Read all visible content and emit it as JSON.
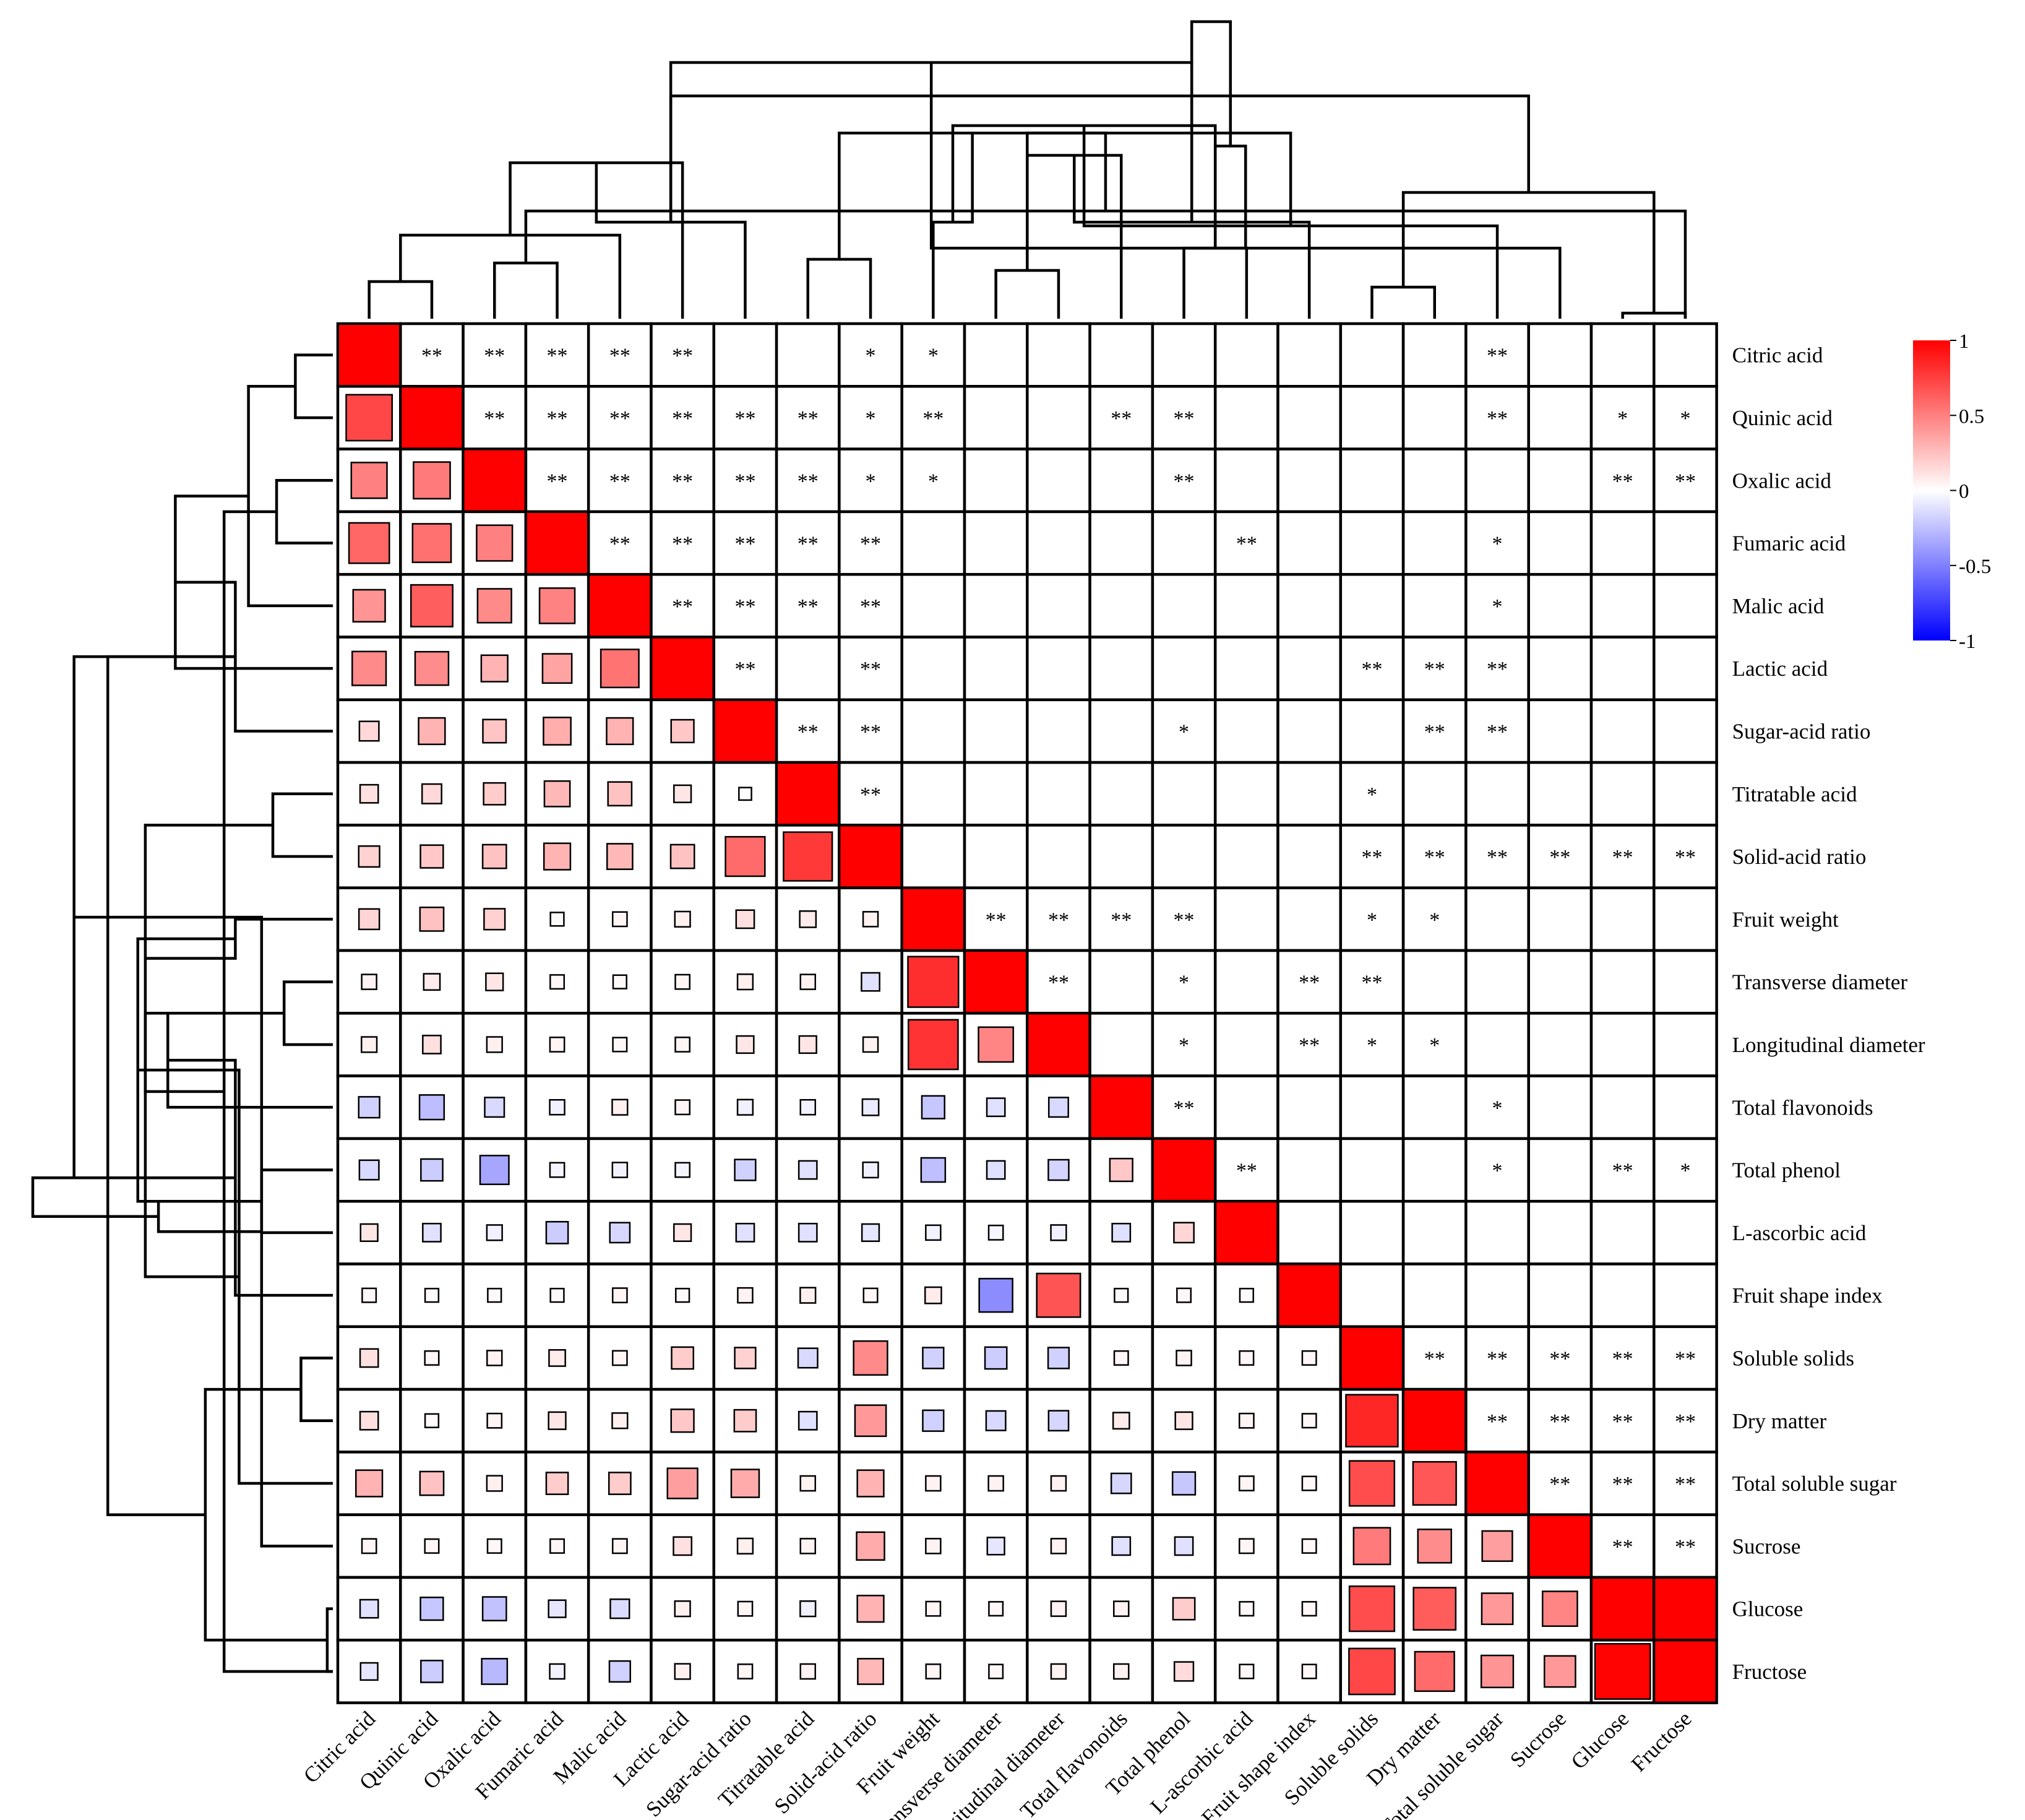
{
  "chart_data": {
    "type": "heatmap",
    "subtype": "clustered correlation matrix",
    "labels": [
      "Citric acid",
      "Quinic acid",
      "Oxalic acid",
      "Fumaric acid",
      "Malic acid",
      "Lactic acid",
      "Sugar-acid ratio",
      "Titratable acid",
      "Solid-acid ratio",
      "Fruit weight",
      "Transverse diameter",
      "Longitudinal diameter",
      "Total flavonoids",
      "Total phenol",
      "L-ascorbic acid",
      "Fruit shape index",
      "Soluble solids",
      "Dry matter",
      "Total soluble sugar",
      "Sucrose",
      "Glucose",
      "Fructose"
    ],
    "lower_triangle_r": [
      [],
      [
        0.72
      ],
      [
        0.5,
        0.52
      ],
      [
        0.6,
        0.56,
        0.5
      ],
      [
        0.42,
        0.63,
        0.46,
        0.49
      ],
      [
        0.46,
        0.45,
        0.3,
        0.36,
        0.55
      ],
      [
        0.15,
        0.3,
        0.23,
        0.32,
        0.3,
        0.22
      ],
      [
        0.12,
        0.15,
        0.2,
        0.28,
        0.24,
        0.1
      ],
      [
        0.18,
        0.22,
        0.24,
        0.3,
        0.28,
        0.24,
        0.58,
        0.78
      ],
      [
        0.17,
        0.24,
        0.18,
        0.02,
        0.04,
        0.06,
        0.12,
        0.08,
        0.05
      ],
      [
        0.05,
        0.08,
        0.1,
        0.03,
        0.02,
        0.04,
        0.06,
        0.05,
        -0.12,
        0.82
      ],
      [
        0.06,
        0.12,
        0.06,
        0.04,
        0.03,
        0.04,
        0.1,
        0.1,
        0.05,
        0.8,
        0.48
      ],
      [
        -0.18,
        -0.26,
        -0.15,
        -0.05,
        0.06,
        0.04,
        -0.06,
        -0.05,
        -0.08,
        -0.22,
        -0.12,
        -0.15
      ],
      [
        -0.15,
        -0.2,
        -0.35,
        -0.04,
        -0.05,
        -0.04,
        -0.18,
        -0.12,
        -0.06,
        -0.25,
        -0.12,
        -0.17,
        0.22
      ],
      [
        0.1,
        -0.12,
        -0.06,
        -0.2,
        -0.16,
        0.1,
        -0.12,
        -0.12,
        -0.1,
        -0.05,
        -0.04,
        -0.06,
        -0.12,
        0.16
      ],
      [
        0.03,
        0.02,
        0.02,
        0.02,
        0.04,
        0.02,
        0.05,
        0.06,
        0.03,
        0.08,
        -0.45,
        0.67,
        0.02,
        0.03,
        0.02
      ],
      [
        0.12,
        0.03,
        0.05,
        0.08,
        0.04,
        0.2,
        0.18,
        -0.15,
        0.46,
        -0.18,
        -0.2,
        -0.18,
        0.03,
        0.05,
        0.03,
        0.03
      ],
      [
        0.12,
        0.02,
        0.04,
        0.1,
        0.06,
        0.22,
        0.2,
        -0.12,
        0.4,
        -0.18,
        -0.15,
        -0.16,
        0.08,
        0.1,
        0.04,
        0.03,
        0.85
      ],
      [
        0.3,
        0.24,
        0.06,
        0.2,
        0.2,
        0.38,
        0.33,
        0.05,
        0.3,
        0.05,
        0.05,
        0.05,
        -0.16,
        -0.22,
        0.04,
        0.03,
        0.7,
        0.66
      ],
      [
        0.04,
        0.03,
        0.03,
        0.03,
        0.04,
        0.12,
        0.06,
        0.05,
        0.33,
        0.05,
        -0.1,
        0.05,
        -0.12,
        -0.12,
        0.04,
        0.03,
        0.52,
        0.45,
        0.38
      ],
      [
        -0.12,
        -0.22,
        -0.24,
        -0.1,
        -0.14,
        0.06,
        0.04,
        -0.06,
        0.3,
        0.04,
        0.03,
        0.05,
        0.05,
        0.2,
        0.03,
        0.03,
        0.7,
        0.64,
        0.4,
        0.48
      ],
      [
        -0.1,
        -0.2,
        -0.28,
        -0.05,
        -0.18,
        0.06,
        0.04,
        0.05,
        0.28,
        0.04,
        0.03,
        0.05,
        0.05,
        0.14,
        0.03,
        0.03,
        0.72,
        0.58,
        0.42,
        0.4,
        0.99
      ]
    ],
    "upper_triangle_significance": [
      [
        0,
        1,
        "**"
      ],
      [
        0,
        2,
        "**"
      ],
      [
        0,
        3,
        "**"
      ],
      [
        0,
        4,
        "**"
      ],
      [
        0,
        5,
        "**"
      ],
      [
        0,
        8,
        "*"
      ],
      [
        0,
        9,
        "*"
      ],
      [
        0,
        18,
        "**"
      ],
      [
        1,
        2,
        "**"
      ],
      [
        1,
        3,
        "**"
      ],
      [
        1,
        4,
        "**"
      ],
      [
        1,
        5,
        "**"
      ],
      [
        1,
        6,
        "**"
      ],
      [
        1,
        7,
        "**"
      ],
      [
        1,
        8,
        "*"
      ],
      [
        1,
        9,
        "**"
      ],
      [
        1,
        12,
        "**"
      ],
      [
        1,
        13,
        "**"
      ],
      [
        1,
        18,
        "**"
      ],
      [
        1,
        20,
        "*"
      ],
      [
        1,
        21,
        "*"
      ],
      [
        2,
        3,
        "**"
      ],
      [
        2,
        4,
        "**"
      ],
      [
        2,
        5,
        "**"
      ],
      [
        2,
        6,
        "**"
      ],
      [
        2,
        7,
        "**"
      ],
      [
        2,
        8,
        "*"
      ],
      [
        2,
        9,
        "*"
      ],
      [
        2,
        13,
        "**"
      ],
      [
        2,
        20,
        "**"
      ],
      [
        2,
        21,
        "**"
      ],
      [
        3,
        4,
        "**"
      ],
      [
        3,
        5,
        "**"
      ],
      [
        3,
        6,
        "**"
      ],
      [
        3,
        7,
        "**"
      ],
      [
        3,
        8,
        "**"
      ],
      [
        3,
        14,
        "**"
      ],
      [
        3,
        18,
        "*"
      ],
      [
        4,
        5,
        "**"
      ],
      [
        4,
        6,
        "**"
      ],
      [
        4,
        7,
        "**"
      ],
      [
        4,
        8,
        "**"
      ],
      [
        4,
        18,
        "*"
      ],
      [
        5,
        6,
        "**"
      ],
      [
        5,
        8,
        "**"
      ],
      [
        5,
        16,
        "**"
      ],
      [
        5,
        17,
        "**"
      ],
      [
        5,
        18,
        "**"
      ],
      [
        6,
        7,
        "**"
      ],
      [
        6,
        8,
        "**"
      ],
      [
        6,
        13,
        "*"
      ],
      [
        6,
        17,
        "**"
      ],
      [
        6,
        18,
        "**"
      ],
      [
        7,
        8,
        "**"
      ],
      [
        7,
        16,
        "*"
      ],
      [
        8,
        16,
        "**"
      ],
      [
        8,
        17,
        "**"
      ],
      [
        8,
        18,
        "**"
      ],
      [
        8,
        19,
        "**"
      ],
      [
        8,
        20,
        "**"
      ],
      [
        8,
        21,
        "**"
      ],
      [
        9,
        10,
        "**"
      ],
      [
        9,
        11,
        "**"
      ],
      [
        9,
        12,
        "**"
      ],
      [
        9,
        13,
        "**"
      ],
      [
        9,
        16,
        "*"
      ],
      [
        9,
        17,
        "*"
      ],
      [
        10,
        11,
        "**"
      ],
      [
        10,
        13,
        "*"
      ],
      [
        10,
        15,
        "**"
      ],
      [
        10,
        16,
        "**"
      ],
      [
        11,
        13,
        "*"
      ],
      [
        11,
        15,
        "**"
      ],
      [
        11,
        16,
        "*"
      ],
      [
        11,
        17,
        "*"
      ],
      [
        12,
        13,
        "**"
      ],
      [
        12,
        18,
        "*"
      ],
      [
        13,
        14,
        "**"
      ],
      [
        13,
        18,
        "*"
      ],
      [
        13,
        20,
        "**"
      ],
      [
        13,
        21,
        "*"
      ],
      [
        16,
        17,
        "**"
      ],
      [
        16,
        18,
        "**"
      ],
      [
        16,
        19,
        "**"
      ],
      [
        16,
        20,
        "**"
      ],
      [
        16,
        21,
        "**"
      ],
      [
        17,
        18,
        "**"
      ],
      [
        17,
        19,
        "**"
      ],
      [
        17,
        20,
        "**"
      ],
      [
        17,
        21,
        "**"
      ],
      [
        18,
        19,
        "**"
      ],
      [
        18,
        20,
        "**"
      ],
      [
        18,
        21,
        "**"
      ],
      [
        19,
        20,
        "**"
      ],
      [
        19,
        21,
        "**"
      ],
      [
        20,
        21,
        "**"
      ]
    ],
    "dendrogram": [
      [
        0,
        1,
        1.0
      ],
      [
        2,
        3,
        1.5
      ],
      [
        22,
        4,
        2.25
      ],
      [
        21,
        23,
        2.9
      ],
      [
        24,
        5,
        4.2
      ],
      [
        7,
        8,
        1.6
      ],
      [
        6,
        26,
        2.6
      ],
      [
        25,
        27,
        5.0
      ],
      [
        10,
        11,
        1.3
      ],
      [
        9,
        29,
        2.6
      ],
      [
        30,
        12,
        4.4
      ],
      [
        13,
        14,
        1.9
      ],
      [
        15,
        32,
        2.6
      ],
      [
        33,
        31,
        5.2
      ],
      [
        28,
        34,
        6.9
      ],
      [
        16,
        17,
        0.85
      ],
      [
        20,
        21,
        0.15
      ],
      [
        19,
        36,
        1.9
      ],
      [
        35,
        18,
        2.5
      ],
      [
        38,
        37,
        3.4
      ],
      [
        39,
        33,
        4.65
      ],
      [
        40,
        30,
        5.0
      ],
      [
        41,
        28,
        6.0
      ],
      [
        42,
        34,
        8.0
      ]
    ],
    "colorbar": {
      "ticks": [
        "1",
        "0.5",
        "0",
        "-0.5",
        "-1"
      ],
      "range": [
        -1,
        1
      ],
      "low_color": "#0000ff",
      "mid_color": "#ffffff",
      "high_color": "#ff0000"
    }
  }
}
